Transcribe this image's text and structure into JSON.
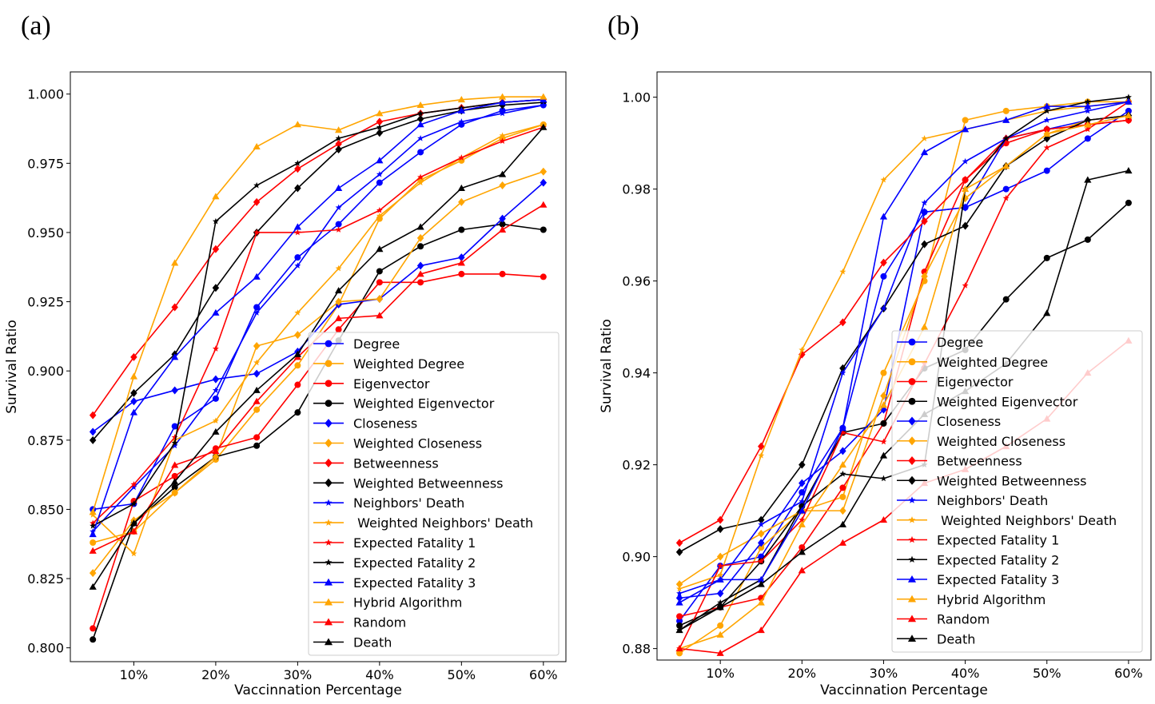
{
  "x_tick_labels": [
    "10%",
    "20%",
    "30%",
    "40%",
    "50%",
    "60%"
  ],
  "legend_labels": [
    "Degree",
    "Weighted Degree",
    "Eigenvector",
    "Weighted Eigenvector",
    "Closeness",
    "Weighted Closeness",
    "Betweenness",
    "Weighted Betweenness",
    "Neighbors' Death",
    " Weighted Neighbors' Death",
    "Expected Fatality 1",
    "Expected Fatality 2",
    "Expected Fatality 3",
    "Hybrid Algorithm",
    "Random",
    "Death"
  ],
  "series_styles": [
    {
      "color": "#0000ff",
      "marker": "circle"
    },
    {
      "color": "#ffa500",
      "marker": "circle"
    },
    {
      "color": "#ff0000",
      "marker": "circle"
    },
    {
      "color": "#000000",
      "marker": "circle"
    },
    {
      "color": "#0000ff",
      "marker": "diamond"
    },
    {
      "color": "#ffa500",
      "marker": "diamond"
    },
    {
      "color": "#ff0000",
      "marker": "diamond"
    },
    {
      "color": "#000000",
      "marker": "diamond"
    },
    {
      "color": "#0000ff",
      "marker": "star"
    },
    {
      "color": "#ffa500",
      "marker": "star"
    },
    {
      "color": "#ff0000",
      "marker": "star"
    },
    {
      "color": "#000000",
      "marker": "star"
    },
    {
      "color": "#0000ff",
      "marker": "triangle"
    },
    {
      "color": "#ffa500",
      "marker": "triangle"
    },
    {
      "color": "#ff0000",
      "marker": "triangle"
    },
    {
      "color": "#000000",
      "marker": "triangle"
    }
  ],
  "chart_data": [
    {
      "panel": "(a)",
      "type": "line",
      "xlabel": "Vaccinnation Percentage",
      "ylabel": "Survival Ratio",
      "x": [
        5,
        10,
        15,
        20,
        25,
        30,
        35,
        40,
        45,
        50,
        55,
        60
      ],
      "ylim": [
        0.795,
        1.008
      ],
      "yticks": [
        0.8,
        0.825,
        0.85,
        0.875,
        0.9,
        0.925,
        0.95,
        0.975,
        1.0
      ],
      "ytick_labels": [
        "0.800",
        "0.825",
        "0.850",
        "0.875",
        "0.900",
        "0.925",
        "0.950",
        "0.975",
        "1.000"
      ],
      "legend_position": "lower-right",
      "series": [
        {
          "name": "Degree",
          "values": [
            0.85,
            0.852,
            0.88,
            0.89,
            0.923,
            0.941,
            0.953,
            0.968,
            0.979,
            0.989,
            0.994,
            0.996
          ]
        },
        {
          "name": "Weighted Degree",
          "values": [
            0.838,
            0.842,
            0.856,
            0.868,
            0.886,
            0.902,
            0.924,
            0.955,
            0.969,
            0.976,
            0.984,
            0.989
          ]
        },
        {
          "name": "Eigenvector",
          "values": [
            0.807,
            0.853,
            0.862,
            0.872,
            0.876,
            0.895,
            0.915,
            0.932,
            0.932,
            0.935,
            0.935,
            0.934
          ]
        },
        {
          "name": "Weighted Eigenvector",
          "values": [
            0.803,
            0.845,
            0.858,
            0.869,
            0.873,
            0.885,
            0.911,
            0.936,
            0.945,
            0.951,
            0.953,
            0.951
          ]
        },
        {
          "name": "Closeness",
          "values": [
            0.878,
            0.889,
            0.893,
            0.897,
            0.899,
            0.907,
            0.924,
            0.926,
            0.938,
            0.941,
            0.955,
            0.968
          ]
        },
        {
          "name": "Weighted Closeness",
          "values": [
            0.827,
            0.846,
            0.856,
            0.869,
            0.909,
            0.913,
            0.925,
            0.926,
            0.948,
            0.961,
            0.967,
            0.972
          ]
        },
        {
          "name": "Betweenness",
          "values": [
            0.884,
            0.905,
            0.923,
            0.944,
            0.961,
            0.973,
            0.982,
            0.99,
            0.993,
            0.995,
            0.997,
            0.998
          ]
        },
        {
          "name": "Weighted Betweenness",
          "values": [
            0.875,
            0.892,
            0.906,
            0.93,
            0.95,
            0.966,
            0.98,
            0.986,
            0.991,
            0.994,
            0.996,
            0.997
          ]
        },
        {
          "name": "Neighbors' Death",
          "values": [
            0.842,
            0.858,
            0.873,
            0.893,
            0.921,
            0.938,
            0.959,
            0.971,
            0.984,
            0.99,
            0.993,
            0.996
          ]
        },
        {
          "name": " Weighted Neighbors' Death",
          "values": [
            0.848,
            0.834,
            0.875,
            0.882,
            0.903,
            0.921,
            0.937,
            0.956,
            0.968,
            0.977,
            0.985,
            0.989
          ]
        },
        {
          "name": "Expected Fatality 1",
          "values": [
            0.845,
            0.859,
            0.876,
            0.908,
            0.95,
            0.95,
            0.951,
            0.958,
            0.97,
            0.977,
            0.983,
            0.988
          ]
        },
        {
          "name": "Expected Fatality 2",
          "values": [
            0.844,
            0.852,
            0.874,
            0.954,
            0.967,
            0.975,
            0.984,
            0.988,
            0.993,
            0.995,
            0.997,
            0.998
          ]
        },
        {
          "name": "Expected Fatality 3",
          "values": [
            0.841,
            0.885,
            0.905,
            0.921,
            0.934,
            0.952,
            0.966,
            0.976,
            0.989,
            0.994,
            0.997,
            0.998
          ]
        },
        {
          "name": "Hybrid Algorithm",
          "values": [
            0.849,
            0.898,
            0.939,
            0.963,
            0.981,
            0.989,
            0.987,
            0.993,
            0.996,
            0.998,
            0.999,
            0.999
          ]
        },
        {
          "name": "Random",
          "values": [
            0.835,
            0.842,
            0.866,
            0.871,
            0.889,
            0.905,
            0.919,
            0.92,
            0.935,
            0.939,
            0.951,
            0.96
          ]
        },
        {
          "name": "Death",
          "values": [
            0.822,
            0.845,
            0.86,
            0.878,
            0.893,
            0.906,
            0.929,
            0.944,
            0.952,
            0.966,
            0.971,
            0.988
          ]
        }
      ]
    },
    {
      "panel": "(b)",
      "type": "line",
      "xlabel": "Vaccinnation Percentage",
      "ylabel": "Survival Ratio",
      "x": [
        5,
        10,
        15,
        20,
        25,
        30,
        35,
        40,
        45,
        50,
        55,
        60
      ],
      "ylim": [
        0.8775,
        1.0055
      ],
      "yticks": [
        0.88,
        0.9,
        0.92,
        0.94,
        0.96,
        0.98,
        1.0
      ],
      "ytick_labels": [
        "0.88",
        "0.90",
        "0.92",
        "0.94",
        "0.96",
        "0.98",
        "1.00"
      ],
      "legend_position": "lower-right",
      "series": [
        {
          "name": "Degree",
          "values": [
            0.886,
            0.898,
            0.9,
            0.914,
            0.928,
            0.961,
            0.975,
            0.976,
            0.98,
            0.984,
            0.991,
            0.997
          ]
        },
        {
          "name": "Weighted Degree",
          "values": [
            0.879,
            0.885,
            0.902,
            0.91,
            0.913,
            0.94,
            0.96,
            0.995,
            0.997,
            0.998,
            0.999,
            0.999
          ]
        },
        {
          "name": "Eigenvector",
          "values": [
            0.887,
            0.889,
            0.891,
            0.902,
            0.915,
            0.929,
            0.962,
            0.982,
            0.99,
            0.993,
            0.994,
            0.995
          ]
        },
        {
          "name": "Weighted Eigenvector",
          "values": [
            0.885,
            0.889,
            0.899,
            0.911,
            0.927,
            0.929,
            0.941,
            0.945,
            0.956,
            0.965,
            0.969,
            0.977
          ]
        },
        {
          "name": "Closeness",
          "values": [
            0.891,
            0.892,
            0.903,
            0.916,
            0.923,
            0.932,
            0.975,
            0.976,
            0.991,
            0.993,
            0.995,
            0.996
          ]
        },
        {
          "name": "Weighted Closeness",
          "values": [
            0.894,
            0.9,
            0.905,
            0.91,
            0.91,
            0.935,
            0.961,
            0.978,
            0.985,
            0.992,
            0.995,
            0.996
          ]
        },
        {
          "name": "Betweenness",
          "values": [
            0.903,
            0.908,
            0.924,
            0.944,
            0.951,
            0.964,
            0.973,
            0.982,
            0.991,
            0.993,
            0.994,
            0.995
          ]
        },
        {
          "name": "Weighted Betweenness",
          "values": [
            0.901,
            0.906,
            0.908,
            0.92,
            0.941,
            0.954,
            0.968,
            0.972,
            0.985,
            0.991,
            0.995,
            0.996
          ]
        },
        {
          "name": "Neighbors' Death",
          "values": [
            0.892,
            0.895,
            0.907,
            0.912,
            0.94,
            0.954,
            0.977,
            0.986,
            0.991,
            0.995,
            0.997,
            0.999
          ]
        },
        {
          "name": " Weighted Neighbors' Death",
          "values": [
            0.893,
            0.896,
            0.922,
            0.945,
            0.962,
            0.982,
            0.991,
            0.993,
            0.995,
            0.997,
            0.998,
            0.999
          ]
        },
        {
          "name": "Expected Fatality 1",
          "values": [
            0.88,
            0.898,
            0.899,
            0.908,
            0.927,
            0.925,
            0.942,
            0.959,
            0.978,
            0.989,
            0.993,
            0.999
          ]
        },
        {
          "name": "Expected Fatality 2",
          "values": [
            0.884,
            0.89,
            0.895,
            0.911,
            0.918,
            0.917,
            0.92,
            0.98,
            0.991,
            0.997,
            0.999,
            1.0
          ]
        },
        {
          "name": "Expected Fatality 3",
          "values": [
            0.89,
            0.895,
            0.895,
            0.91,
            0.928,
            0.974,
            0.988,
            0.993,
            0.995,
            0.998,
            0.998,
            0.999
          ]
        },
        {
          "name": "Hybrid Algorithm",
          "values": [
            0.88,
            0.883,
            0.89,
            0.907,
            0.92,
            0.933,
            0.95,
            0.98,
            0.985,
            0.992,
            0.994,
            0.996
          ]
        },
        {
          "name": "Random",
          "values": [
            0.88,
            0.879,
            0.884,
            0.897,
            0.903,
            0.908,
            0.916,
            0.919,
            0.924,
            0.93,
            0.94,
            0.947
          ]
        },
        {
          "name": "Death",
          "values": [
            0.884,
            0.889,
            0.894,
            0.901,
            0.907,
            0.922,
            0.931,
            0.936,
            0.942,
            0.953,
            0.982,
            0.984
          ]
        }
      ]
    }
  ]
}
